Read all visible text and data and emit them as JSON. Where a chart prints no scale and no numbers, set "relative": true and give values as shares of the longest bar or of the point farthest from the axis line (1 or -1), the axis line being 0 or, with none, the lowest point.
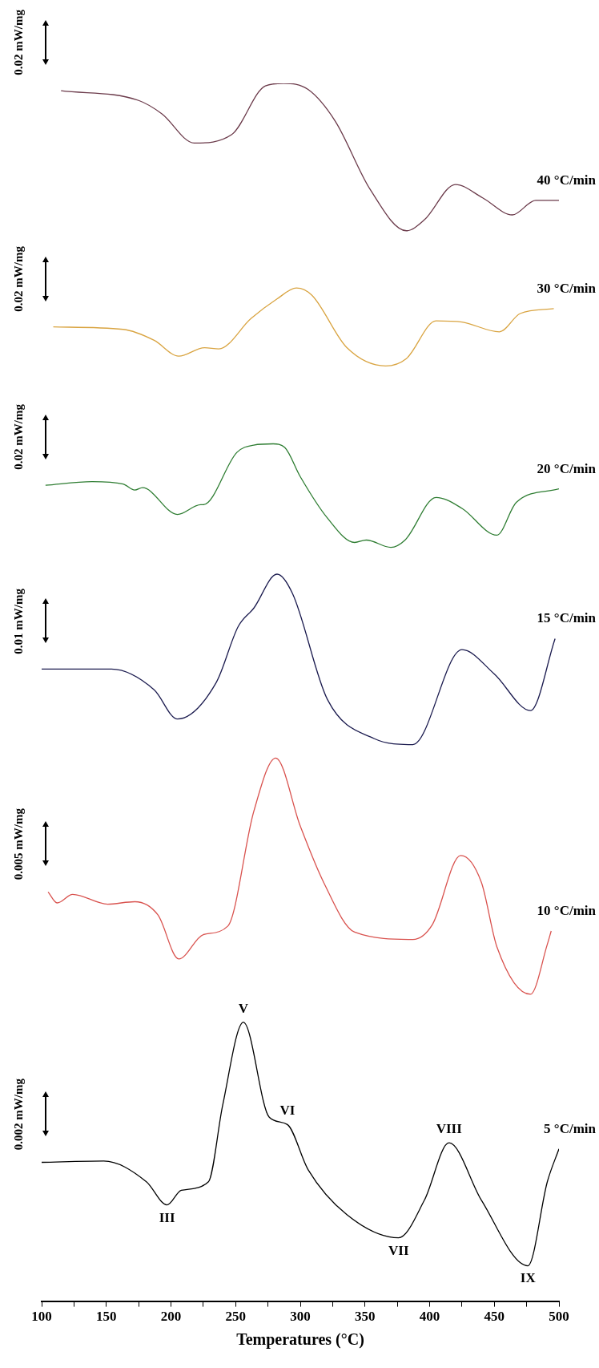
{
  "chart_data": {
    "type": "line",
    "relative": true,
    "xlabel": "Temperatures (°C)",
    "xlim": [
      100,
      500
    ],
    "xticks": [
      100,
      {
        "value": 125,
        "label": null
      },
      150,
      {
        "value": 175,
        "label": null
      },
      200,
      {
        "value": 225,
        "label": null
      },
      250,
      {
        "value": 275,
        "label": null
      },
      300,
      {
        "value": 325,
        "label": null
      },
      350,
      {
        "value": 375,
        "label": null
      },
      400,
      {
        "value": 425,
        "label": null
      },
      450,
      {
        "value": 475,
        "label": null
      },
      500
    ],
    "grid": false,
    "legend": false,
    "marker": "none",
    "line_style": "solid",
    "series": [
      {
        "name": "40 °C/min",
        "color": "#6b3a4a",
        "x": [
          115,
          175,
          193,
          218,
          247,
          273,
          287,
          306,
          327,
          354,
          382,
          396,
          420,
          441,
          464,
          482,
          500
        ],
        "values": [
          0.994,
          0.986,
          0.975,
          0.951,
          0.958,
          0.998,
          1.0,
          0.995,
          0.969,
          0.913,
          0.879,
          0.888,
          0.917,
          0.906,
          0.892,
          0.904,
          0.904
        ]
      },
      {
        "name": "30 °C/min",
        "color": "#d9a441",
        "x": [
          109,
          163,
          187,
          206,
          226,
          237,
          262,
          282,
          297,
          309,
          336,
          366,
          382,
          405,
          425,
          454,
          470,
          496
        ],
        "values": [
          0.8,
          0.798,
          0.789,
          0.776,
          0.783,
          0.782,
          0.807,
          0.823,
          0.832,
          0.826,
          0.783,
          0.768,
          0.774,
          0.805,
          0.804,
          0.796,
          0.811,
          0.815
        ]
      },
      {
        "name": "20 °C/min",
        "color": "#2e7d32",
        "x": [
          103,
          139,
          163,
          172,
          178,
          205,
          223,
          225,
          251,
          264,
          279,
          288,
          300,
          321,
          342,
          351,
          370,
          381,
          405,
          425,
          452,
          467,
          500
        ],
        "values": [
          0.67,
          0.673,
          0.671,
          0.666,
          0.668,
          0.646,
          0.654,
          0.654,
          0.697,
          0.703,
          0.704,
          0.701,
          0.677,
          0.643,
          0.623,
          0.625,
          0.619,
          0.625,
          0.66,
          0.651,
          0.629,
          0.656,
          0.667
        ]
      },
      {
        "name": "15 °C/min",
        "color": "#1a1a4e",
        "x": [
          100,
          154,
          187,
          205,
          235,
          252,
          264,
          282,
          294,
          321,
          357,
          387,
          425,
          450,
          478,
          497
        ],
        "values": [
          0.519,
          0.519,
          0.502,
          0.478,
          0.508,
          0.554,
          0.569,
          0.597,
          0.581,
          0.494,
          0.462,
          0.457,
          0.535,
          0.515,
          0.485,
          0.544
        ]
      },
      {
        "name": "10 °C/min",
        "color": "#d9534f",
        "x": [
          105,
          112,
          124,
          151,
          172,
          190,
          206,
          225,
          244,
          264,
          281,
          300,
          318,
          342,
          387,
          402,
          424,
          440,
          452,
          478,
          491,
          494
        ],
        "values": [
          0.336,
          0.327,
          0.334,
          0.326,
          0.328,
          0.317,
          0.281,
          0.301,
          0.308,
          0.402,
          0.446,
          0.39,
          0.344,
          0.303,
          0.297,
          0.309,
          0.366,
          0.344,
          0.291,
          0.252,
          0.293,
          0.304
        ]
      },
      {
        "name": "5 °C/min",
        "color": "#000000",
        "x": [
          100,
          148,
          181,
          197,
          208,
          229,
          240,
          256,
          276,
          290,
          306,
          336,
          376,
          396,
          415,
          440,
          476,
          491,
          500
        ],
        "values": [
          0.114,
          0.115,
          0.098,
          0.079,
          0.091,
          0.098,
          0.161,
          0.229,
          0.151,
          0.145,
          0.108,
          0.071,
          0.052,
          0.083,
          0.13,
          0.083,
          0.029,
          0.098,
          0.125
        ]
      }
    ],
    "annotations": [
      "0.02 mW/mg",
      "0.02 mW/mg",
      "0.02 mW/mg",
      "0.01 mW/mg",
      "0.005 mW/mg",
      "0.002 mW/mg",
      {
        "text": "III",
        "x": 197,
        "y": 0.079
      },
      {
        "text": "V",
        "x": 256,
        "y": 0.229
      },
      {
        "text": "VI",
        "x": 290,
        "y": 0.145
      },
      {
        "text": "VII",
        "x": 376,
        "y": 0.052
      },
      {
        "text": "VIII",
        "x": 415,
        "y": 0.13
      },
      {
        "text": "IX",
        "x": 476,
        "y": 0.029
      }
    ]
  }
}
